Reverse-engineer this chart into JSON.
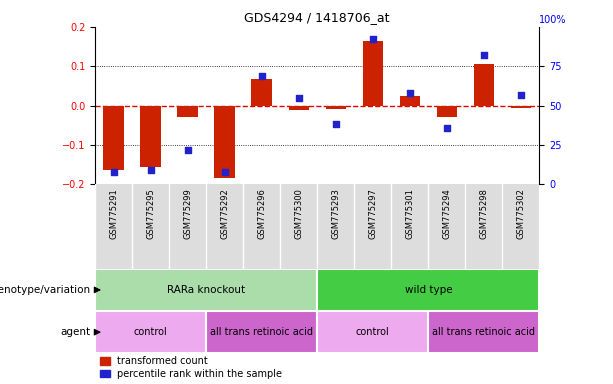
{
  "title": "GDS4294 / 1418706_at",
  "samples": [
    "GSM775291",
    "GSM775295",
    "GSM775299",
    "GSM775292",
    "GSM775296",
    "GSM775300",
    "GSM775293",
    "GSM775297",
    "GSM775301",
    "GSM775294",
    "GSM775298",
    "GSM775302"
  ],
  "transformed_count": [
    -0.163,
    -0.155,
    -0.03,
    -0.185,
    0.068,
    -0.01,
    -0.008,
    0.165,
    0.025,
    -0.03,
    0.105,
    -0.005
  ],
  "percentile_rank": [
    8,
    9,
    22,
    8,
    69,
    55,
    38,
    92,
    58,
    36,
    82,
    57
  ],
  "ylim_left": [
    -0.2,
    0.2
  ],
  "ylim_right": [
    0,
    100
  ],
  "yticks_left": [
    -0.2,
    -0.1,
    0,
    0.1,
    0.2
  ],
  "yticks_right": [
    0,
    25,
    50,
    75,
    100
  ],
  "bar_color": "#CC2200",
  "dot_color": "#2222CC",
  "zero_line_color": "#DD0000",
  "genotype_groups": [
    {
      "label": "RARa knockout",
      "start": 0,
      "end": 6,
      "color": "#AADDAA"
    },
    {
      "label": "wild type",
      "start": 6,
      "end": 12,
      "color": "#44CC44"
    }
  ],
  "agent_groups": [
    {
      "label": "control",
      "start": 0,
      "end": 3,
      "color": "#EEAAEE"
    },
    {
      "label": "all trans retinoic acid",
      "start": 3,
      "end": 6,
      "color": "#CC66CC"
    },
    {
      "label": "control",
      "start": 6,
      "end": 9,
      "color": "#EEAAEE"
    },
    {
      "label": "all trans retinoic acid",
      "start": 9,
      "end": 12,
      "color": "#CC66CC"
    }
  ],
  "legend_items": [
    {
      "label": "transformed count",
      "color": "#CC2200"
    },
    {
      "label": "percentile rank within the sample",
      "color": "#2222CC"
    }
  ],
  "bar_width": 0.55,
  "bg_color": "#FFFFFF",
  "tick_fontsize": 7,
  "sample_fontsize": 6,
  "label_fontsize": 7.5,
  "group_fontsize": 7.5,
  "legend_fontsize": 7
}
